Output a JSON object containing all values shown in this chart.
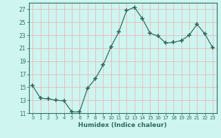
{
  "x": [
    0,
    1,
    2,
    3,
    4,
    5,
    6,
    7,
    8,
    9,
    10,
    11,
    12,
    13,
    14,
    15,
    16,
    17,
    18,
    19,
    20,
    21,
    22,
    23
  ],
  "y": [
    15.2,
    13.3,
    13.2,
    13.0,
    12.9,
    11.2,
    11.2,
    14.8,
    16.3,
    18.4,
    21.2,
    23.5,
    26.8,
    27.3,
    25.6,
    23.3,
    22.9,
    21.8,
    21.9,
    22.2,
    23.0,
    24.7,
    23.2,
    21.1
  ],
  "xlabel": "Humidex (Indice chaleur)",
  "line_color": "#2d6b5e",
  "marker": "+",
  "marker_size": 4,
  "marker_lw": 1.2,
  "bg_color": "#cef5f0",
  "grid_color": "#e8b8b8",
  "ylim": [
    11,
    28
  ],
  "yticks": [
    11,
    13,
    15,
    17,
    19,
    21,
    23,
    25,
    27
  ],
  "xlim": [
    -0.5,
    23.5
  ],
  "xticks": [
    0,
    1,
    2,
    3,
    4,
    5,
    6,
    7,
    8,
    9,
    10,
    11,
    12,
    13,
    14,
    15,
    16,
    17,
    18,
    19,
    20,
    21,
    22,
    23
  ]
}
